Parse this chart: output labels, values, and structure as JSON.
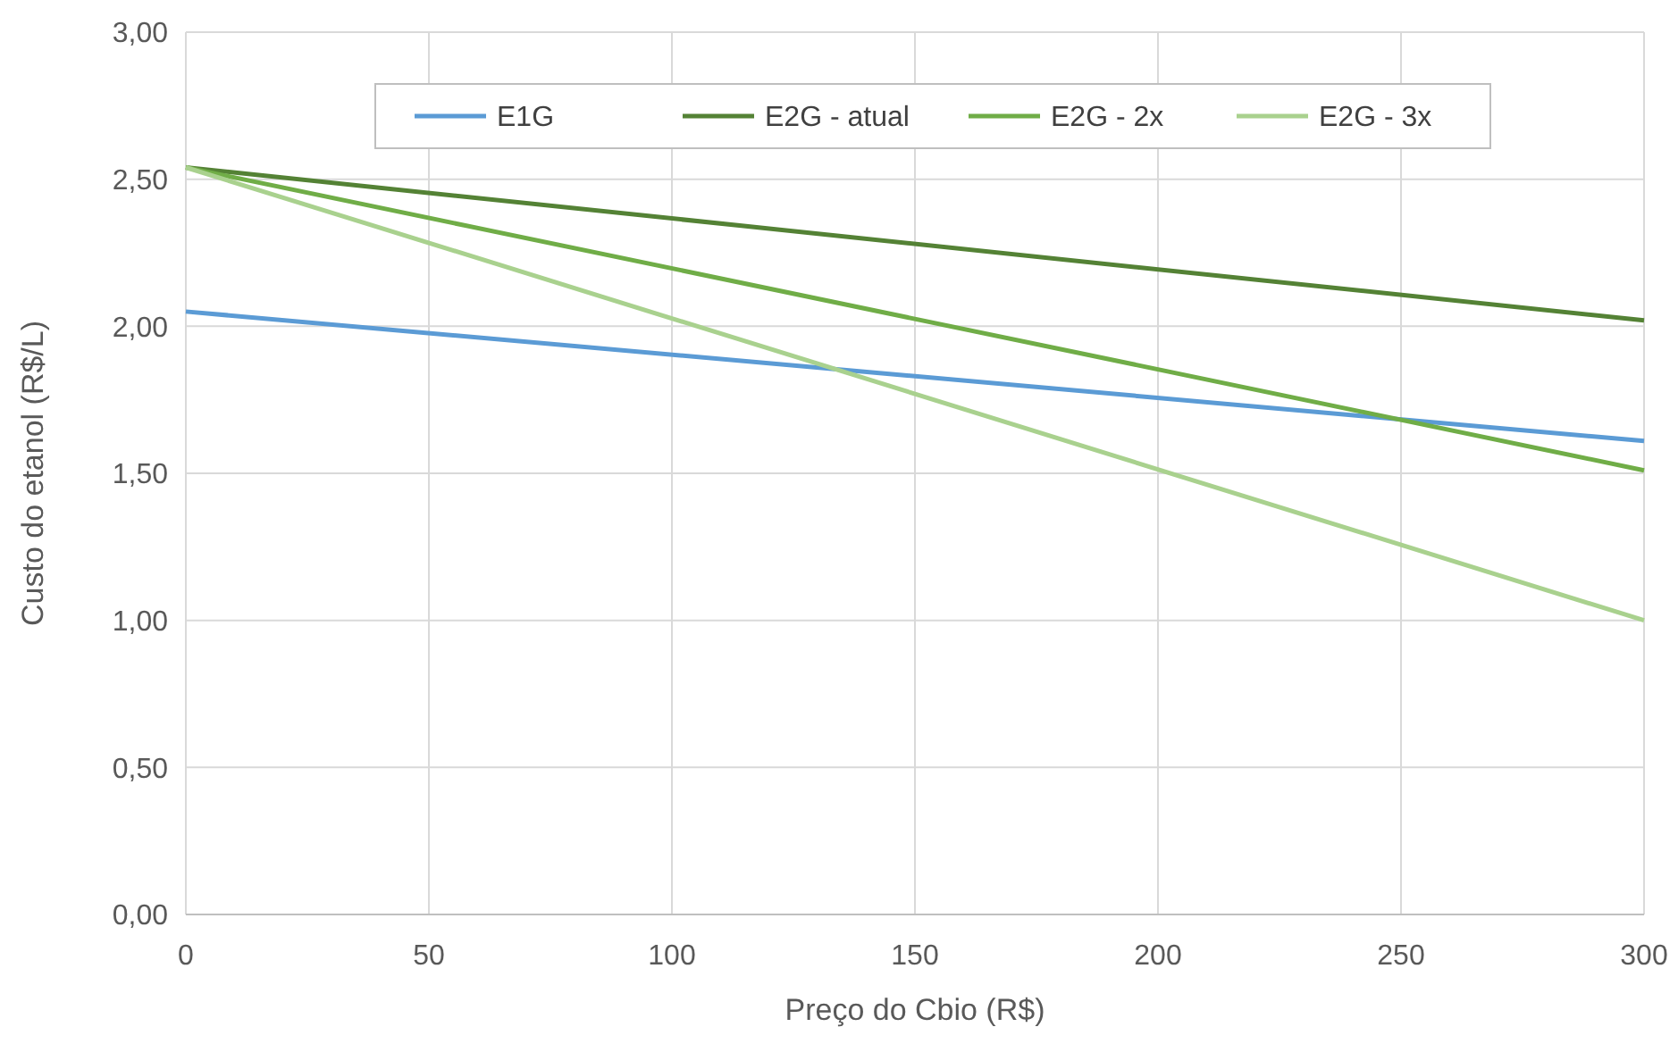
{
  "chart_data": {
    "type": "line",
    "xlabel": "Preço do Cbio (R$)",
    "ylabel": "Custo do etanol (R$/L)",
    "x": [
      0,
      300
    ],
    "series": [
      {
        "name": "E1G",
        "color": "#5b9bd5",
        "values": [
          2.05,
          1.61
        ]
      },
      {
        "name": "E2G - atual",
        "color": "#548235",
        "values": [
          2.54,
          2.02
        ]
      },
      {
        "name": "E2G - 2x",
        "color": "#70ad47",
        "values": [
          2.54,
          1.51
        ]
      },
      {
        "name": "E2G - 3x",
        "color": "#a9d18e",
        "values": [
          2.54,
          1.0
        ]
      }
    ],
    "xlim": [
      0,
      300
    ],
    "xticks": [
      0,
      50,
      100,
      150,
      200,
      250,
      300
    ],
    "ylim": [
      0,
      3
    ],
    "yticks": [
      {
        "value": 0,
        "label": "0,00"
      },
      {
        "value": 0.5,
        "label": "0,50"
      },
      {
        "value": 1,
        "label": "1,00"
      },
      {
        "value": 1.5,
        "label": "1,50"
      },
      {
        "value": 2,
        "label": "2,00"
      },
      {
        "value": 2.5,
        "label": "2,50"
      },
      {
        "value": 3,
        "label": "3,00"
      }
    ],
    "grid": true,
    "legend": "top",
    "marker": "none",
    "line_style": "solid"
  }
}
